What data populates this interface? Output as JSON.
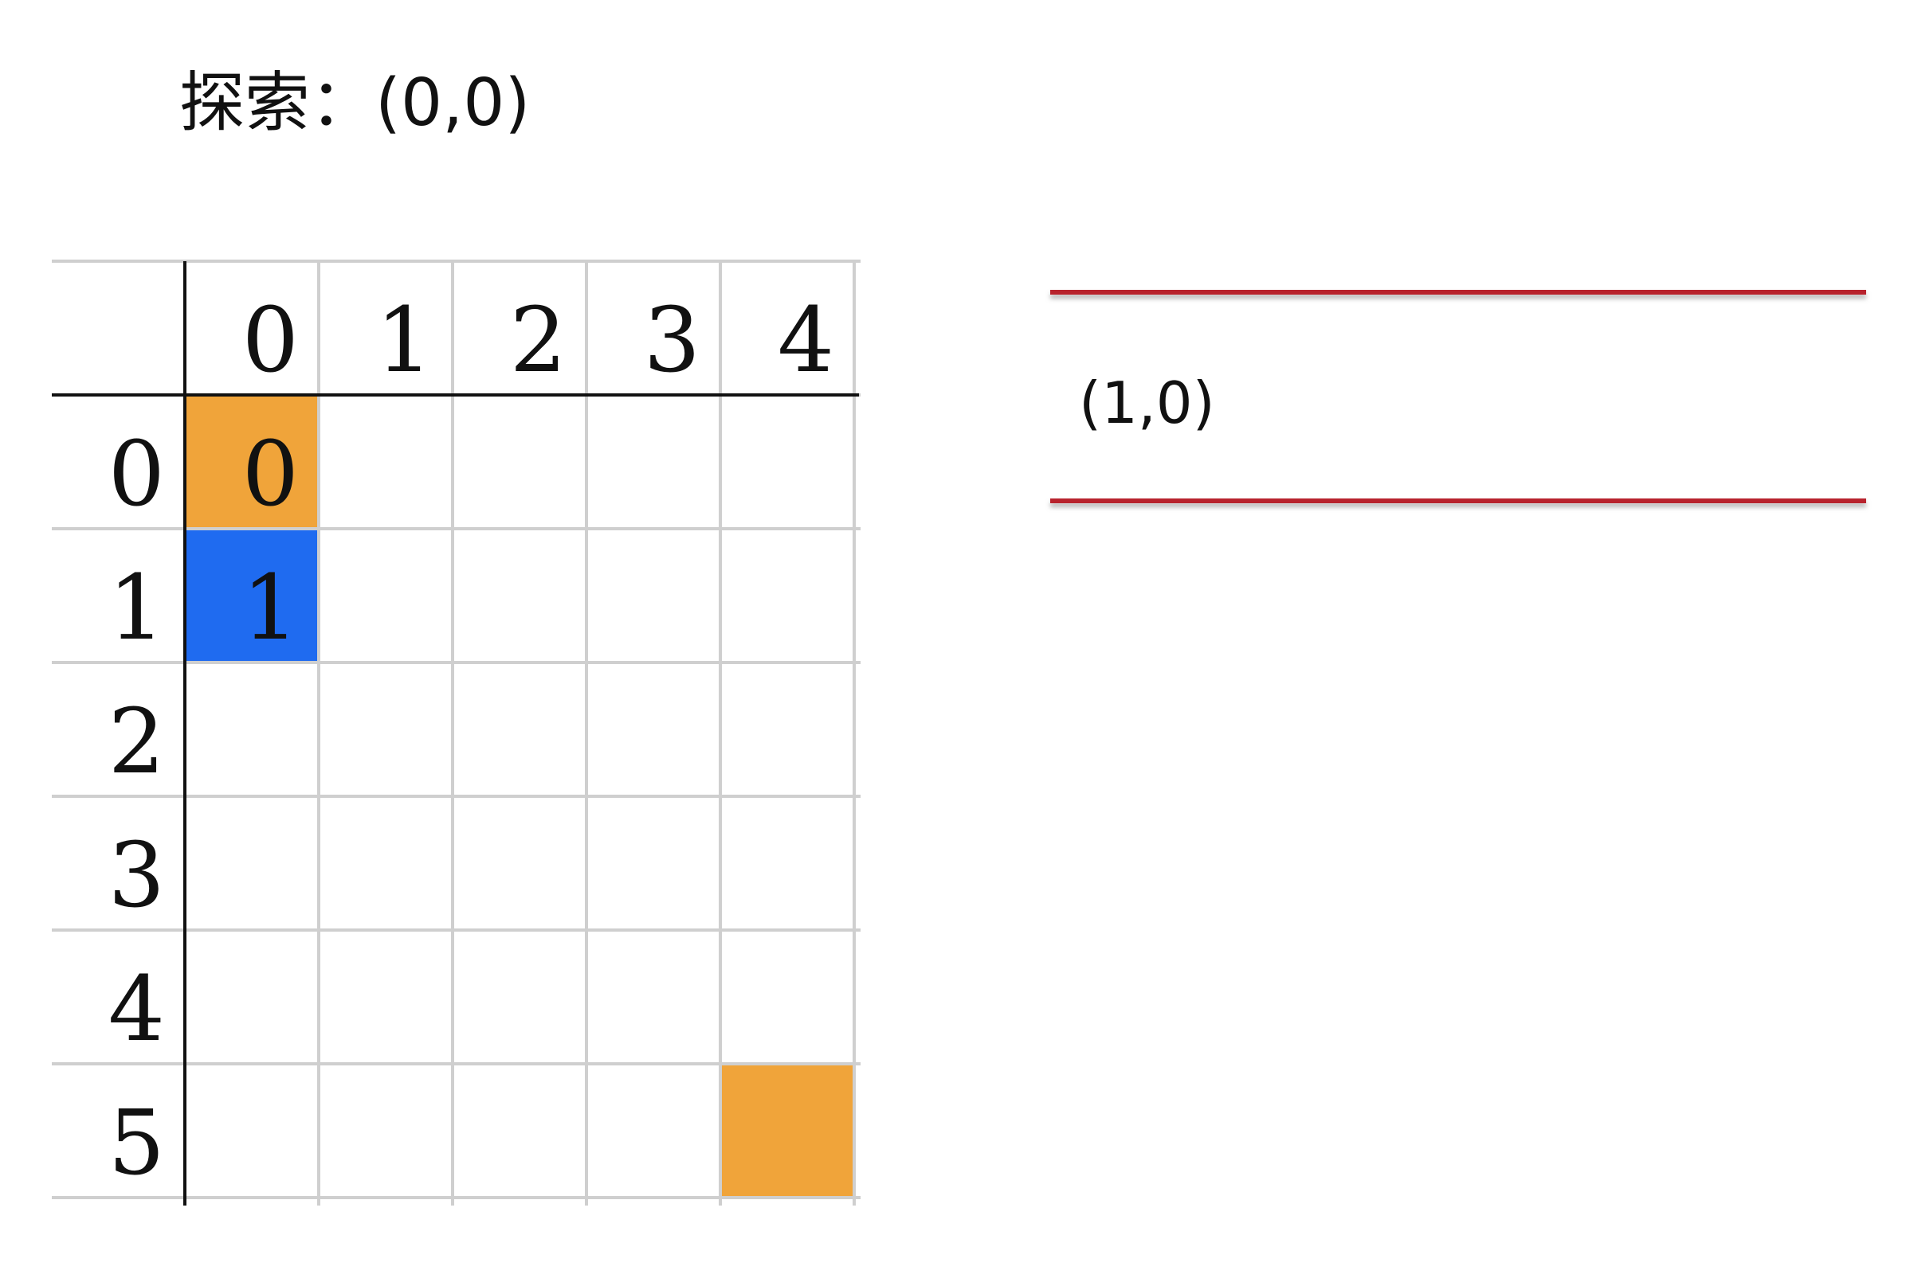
{
  "title": "探索：(0,0)",
  "grid": {
    "col_headers": [
      "0",
      "1",
      "2",
      "3",
      "4"
    ],
    "row_headers": [
      "0",
      "1",
      "2",
      "3",
      "4",
      "5"
    ],
    "cells": [
      {
        "row": 0,
        "col": 0,
        "label": "0",
        "state": "visited"
      },
      {
        "row": 1,
        "col": 0,
        "label": "1",
        "state": "current"
      },
      {
        "row": 5,
        "col": 4,
        "label": "",
        "state": "visited"
      }
    ],
    "colors": {
      "visited": "#f0a43a",
      "current": "#1f6bf0",
      "grid_line": "#cfcfcf",
      "header_line": "#111111"
    }
  },
  "queue": {
    "items": [
      "(1,0)"
    ],
    "line_color": "#b8232d"
  }
}
